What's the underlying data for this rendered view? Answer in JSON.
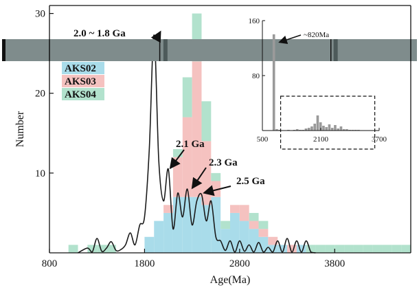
{
  "chart_data": {
    "type": "bar",
    "stacked": true,
    "xlabel": "Age(Ma)",
    "ylabel": "Number",
    "xlim": [
      800,
      4600
    ],
    "ylim": [
      0,
      31
    ],
    "xticks": [
      "800",
      "1800",
      "2800",
      "3800"
    ],
    "yticks": [
      "10",
      "20",
      "30"
    ],
    "legend_position": "upper-left",
    "bin_width": 100,
    "bin_start": 1000,
    "series": [
      {
        "name": "AKS02",
        "color": "#a9dcea",
        "values": [
          0,
          0,
          0,
          0,
          0,
          0,
          0,
          0,
          2,
          4,
          5,
          7,
          7,
          7,
          6,
          7,
          3,
          5,
          4,
          3,
          2,
          1,
          1,
          0,
          1,
          0,
          0,
          0,
          0,
          0,
          0,
          0,
          0,
          0,
          0,
          0
        ]
      },
      {
        "name": "AKS03",
        "color": "#f5c2c0",
        "values": [
          0,
          0,
          0,
          0,
          0,
          0,
          0,
          0,
          0,
          0,
          1,
          5,
          10,
          17,
          8,
          2,
          0,
          1,
          2,
          1,
          1,
          1,
          0,
          1,
          0,
          0,
          0,
          0,
          0,
          0,
          0,
          0,
          0,
          0,
          0,
          0
        ]
      },
      {
        "name": "AKS04",
        "color": "#b2e2cd",
        "values": [
          1,
          0,
          1,
          1,
          1,
          0,
          0,
          0,
          0,
          0,
          0,
          1,
          5,
          6,
          5,
          1,
          1,
          0,
          0,
          1,
          1,
          0,
          0,
          0,
          0,
          1,
          1,
          1,
          1,
          1,
          1,
          1,
          1,
          1,
          1,
          1
        ]
      }
    ],
    "density_curve": {
      "color": "#1a1a1a",
      "x": [
        1100,
        1200,
        1250,
        1300,
        1350,
        1400,
        1450,
        1500,
        1550,
        1600,
        1650,
        1700,
        1750,
        1800,
        1850,
        1900,
        1950,
        2000,
        2050,
        2100,
        2150,
        2200,
        2250,
        2300,
        2350,
        2400,
        2450,
        2500,
        2550,
        2600,
        2650,
        2700,
        2750,
        2800,
        2850,
        2900,
        2950,
        3000,
        3050,
        3100,
        3150,
        3200,
        3250,
        3300,
        3350,
        3400,
        3450,
        3500,
        3550,
        3600
      ],
      "y": [
        0,
        0.6,
        0.1,
        1.8,
        0.2,
        0.6,
        1.4,
        0.3,
        0.4,
        1.0,
        2.5,
        1.0,
        3.5,
        4.5,
        13.0,
        27.3,
        11.5,
        6.5,
        10.5,
        3.0,
        7.5,
        4.5,
        8.0,
        3.5,
        6.5,
        7.3,
        4.0,
        6.5,
        2.0,
        1.5,
        0.3,
        1.5,
        0.1,
        1.5,
        0.2,
        1.0,
        0.1,
        1.3,
        0.1,
        0.7,
        0.1,
        1.5,
        0.1,
        1.8,
        0.1,
        1.5,
        0.1,
        1.5,
        0.1,
        0
      ]
    },
    "annotations": [
      {
        "text": "2.0 ~ 1.8 Ga",
        "target": [
          1960,
          27.3
        ]
      },
      {
        "text": "2.1 Ga",
        "target": [
          2080,
          10.5
        ]
      },
      {
        "text": "2.3 Ga",
        "target": [
          2310,
          8.0
        ]
      },
      {
        "text": "2.5 Ga",
        "target": [
          2440,
          7.3
        ]
      }
    ],
    "banner": {
      "ticks": [
        800,
        1960,
        3760,
        4600
      ],
      "dark_marks": [
        2020,
        3810
      ]
    },
    "inset": {
      "xlim": [
        500,
        3700
      ],
      "ylim": [
        0,
        160
      ],
      "xticks": [
        "500",
        "2100",
        "3700"
      ],
      "yticks": [
        "80",
        "160"
      ],
      "annotation": "~820Ma",
      "annotation_target": 880,
      "bin_width": 80,
      "bins_x": [
        780,
        860,
        940,
        1020,
        1100,
        1180,
        1260,
        1340,
        1420,
        1500,
        1580,
        1660,
        1740,
        1820,
        1900,
        1980,
        2060,
        2140,
        2220,
        2300,
        2380,
        2460,
        2540,
        2620,
        2700,
        2780,
        2860,
        2940,
        3020,
        3100,
        3180
      ],
      "values": [
        140,
        2,
        1,
        0,
        0,
        1,
        0,
        1,
        2,
        1,
        1,
        3,
        4,
        6,
        10,
        22,
        12,
        7,
        5,
        9,
        4,
        8,
        3,
        6,
        2,
        2,
        1,
        1,
        1,
        1,
        0
      ],
      "highlight_range": [
        1000,
        3580
      ]
    }
  }
}
